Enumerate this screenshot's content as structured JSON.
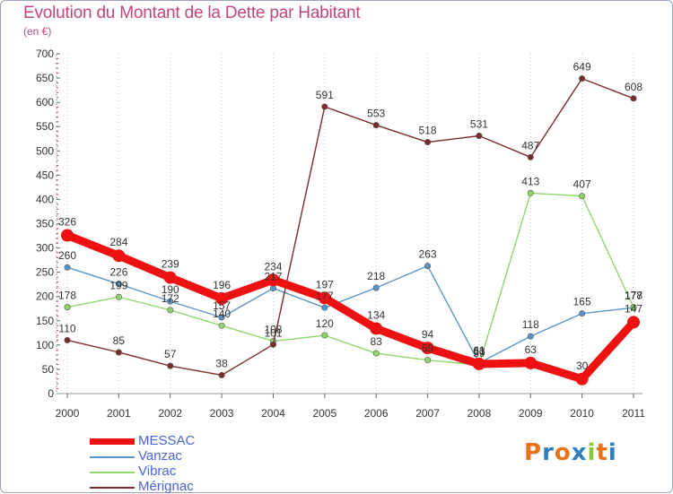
{
  "title": "Evolution du Montant de la Dette par Habitant",
  "subtitle": "(en €)",
  "logo": {
    "text": "Proxiti",
    "colors": [
      "#e8731a",
      "#2f7fc1",
      "#e8731a",
      "#2f7fc1",
      "#8cc43c",
      "#e8731a",
      "#2f7fc1"
    ]
  },
  "chart_data": {
    "type": "line",
    "title": "Evolution du Montant de la Dette par Habitant",
    "subtitle": "(en €)",
    "categories": [
      "2000",
      "2001",
      "2002",
      "2003",
      "2004",
      "2005",
      "2006",
      "2007",
      "2008",
      "2009",
      "2010",
      "2011"
    ],
    "ylim": [
      0,
      700
    ],
    "yticks": [
      0,
      50,
      100,
      150,
      200,
      250,
      300,
      350,
      400,
      450,
      500,
      550,
      600,
      650,
      700
    ],
    "grid": "vertical dotted",
    "legend_position": "bottom-left",
    "series": [
      {
        "name": "MESSAC",
        "color": "#ee1111",
        "emphasis": true,
        "values": [
          326,
          284,
          239,
          196,
          234,
          197,
          134,
          94,
          61,
          63,
          30,
          147
        ]
      },
      {
        "name": "Vanzac",
        "color": "#5a95c8",
        "values": [
          260,
          226,
          190,
          157,
          217,
          177,
          218,
          263,
          63,
          118,
          165,
          177
        ]
      },
      {
        "name": "Vibrac",
        "color": "#8dd66b",
        "values": [
          178,
          199,
          172,
          140,
          108,
          120,
          83,
          69,
          59,
          413,
          407,
          178
        ]
      },
      {
        "name": "Mérignac",
        "color": "#7a2c2c",
        "values": [
          110,
          85,
          57,
          38,
          101,
          591,
          553,
          518,
          531,
          487,
          649,
          608
        ]
      }
    ]
  }
}
